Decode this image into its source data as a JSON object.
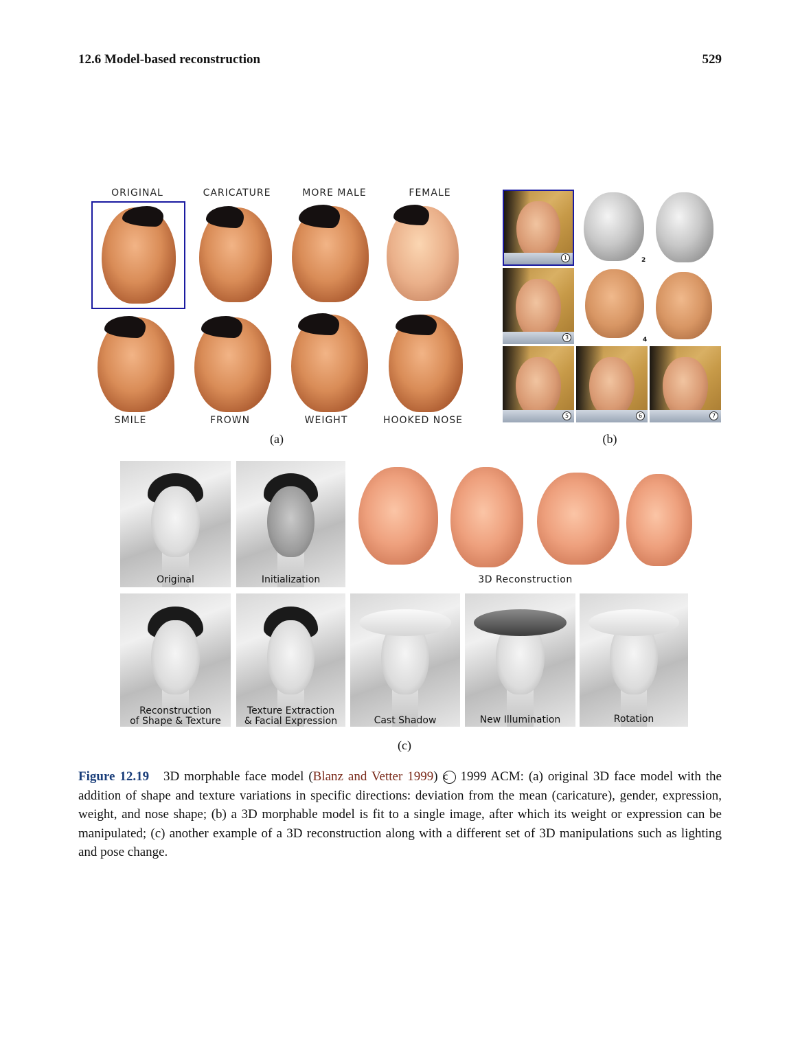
{
  "header": {
    "section_title": "12.6 Model-based reconstruction",
    "page_number": "529"
  },
  "figure": {
    "panel_a": {
      "top_labels": [
        "ORIGINAL",
        "CARICATURE",
        "MORE MALE",
        "FEMALE"
      ],
      "bottom_labels": [
        "SMILE",
        "FROWN",
        "WEIGHT",
        "HOOKED NOSE"
      ],
      "subcaption": "(a)"
    },
    "panel_b": {
      "step_numbers": [
        "1",
        "2",
        "3",
        "4",
        "5",
        "6",
        "7"
      ],
      "subcaption": "(b)"
    },
    "panel_c": {
      "top_labels": [
        "Original",
        "Initialization",
        "3D Reconstruction"
      ],
      "bottom_labels": [
        {
          "line1": "Reconstruction",
          "line2": "of Shape & Texture"
        },
        {
          "line1": "Texture Extraction",
          "line2": "& Facial Expression"
        },
        {
          "line1": "Cast Shadow",
          "line2": ""
        },
        {
          "line1": "New Illumination",
          "line2": ""
        },
        {
          "line1": "Rotation",
          "line2": ""
        }
      ],
      "subcaption": "(c)"
    }
  },
  "caption": {
    "label": "Figure 12.19",
    "text_before_cite": "3D morphable face model (",
    "citation": "Blanz and Vetter 1999",
    "text_after_cite": ")",
    "copyright_symbol": "c",
    "text_rest": "1999 ACM: (a) original 3D face model with the addition of shape and texture variations in specific directions: deviation from the mean (caricature), gender, expression, weight, and nose shape; (b) a 3D morphable model is fit to a single image, after which its weight or expression can be manipulated; (c) another example of a 3D reconstruction along with a different set of 3D manipulations such as lighting and pose change."
  }
}
